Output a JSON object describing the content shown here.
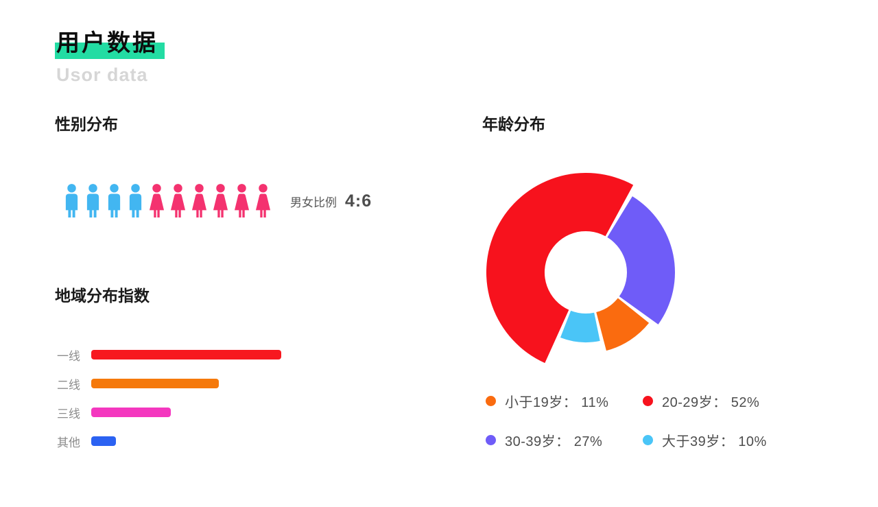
{
  "page": {
    "title": "用户数据",
    "subtitle": "Usor data",
    "highlight_color": "#23DCA3",
    "background_color": "#FFFFFF"
  },
  "sections": {
    "gender": {
      "heading": "性别分布",
      "ratio_label": "男女比例",
      "ratio_value": "4:6"
    },
    "region": {
      "heading": "地域分布指数"
    },
    "age": {
      "heading": "年龄分布"
    }
  },
  "chart_data": [
    {
      "type": "pictograph",
      "title": "性别分布",
      "male": {
        "count": 4,
        "color": "#42B6F1",
        "icon": "male-person-icon"
      },
      "female": {
        "count": 6,
        "color": "#F4326F",
        "icon": "female-person-icon"
      },
      "annotation_label": "男女比例",
      "annotation_value": "4:6"
    },
    {
      "type": "bar",
      "title": "地域分布指数",
      "orientation": "horizontal",
      "categories": [
        "一线",
        "二线",
        "三线",
        "其他"
      ],
      "values": [
        100,
        67,
        42,
        13
      ],
      "xlim": [
        0,
        100
      ],
      "colors": [
        "#F7181F",
        "#F5790B",
        "#F437BF",
        "#2B62F2"
      ],
      "grid": false,
      "axis_labels_visible": false
    },
    {
      "type": "donut",
      "variant": "rose",
      "title": "年龄分布",
      "series": [
        {
          "name": "小于19岁",
          "value": 11,
          "percent": "11%",
          "color": "#FA6B0F",
          "outer_radius": 118,
          "legend_text": "小于19岁： 11%"
        },
        {
          "name": "20-29岁",
          "value": 52,
          "percent": "52%",
          "color": "#F7121D",
          "outer_radius": 145,
          "legend_text": "20-29岁： 52%"
        },
        {
          "name": "30-39岁",
          "value": 27,
          "percent": "27%",
          "color": "#6F5CF8",
          "outer_radius": 130,
          "legend_text": "30-39岁： 27%"
        },
        {
          "name": "大于39岁",
          "value": 10,
          "percent": "10%",
          "color": "#4AC5F7",
          "outer_radius": 102,
          "legend_text": "大于39岁： 10%"
        }
      ],
      "draw": {
        "start_angle": 30,
        "gap_angle": 3,
        "inner_radius": 60,
        "order": [
          "30-39岁",
          "小于19岁",
          "大于39岁",
          "20-29岁"
        ]
      },
      "legend_position": "bottom",
      "legend_columns": 2
    }
  ]
}
